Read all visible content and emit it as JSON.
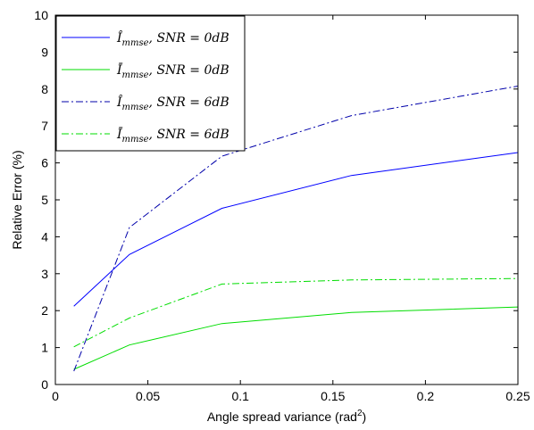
{
  "chart_data": {
    "type": "line",
    "xlabel": "Angle spread variance (rad",
    "xlabel_sup": "2",
    "xlabel_close": ")",
    "ylabel": "Relative Error (%)",
    "xlim": [
      0,
      0.25
    ],
    "ylim": [
      0,
      10
    ],
    "xticks": [
      "0",
      "0.05",
      "0.1",
      "0.15",
      "0.2",
      "0.25"
    ],
    "xtick_values": [
      0,
      0.05,
      0.1,
      0.15,
      0.2,
      0.25
    ],
    "yticks": [
      "0",
      "1",
      "2",
      "3",
      "4",
      "5",
      "6",
      "7",
      "8",
      "9",
      "10"
    ],
    "ytick_values": [
      0,
      1,
      2,
      3,
      4,
      5,
      6,
      7,
      8,
      9,
      10
    ],
    "grid": false,
    "legend_position": "top-left",
    "x": [
      0.01,
      0.04,
      0.09,
      0.16,
      0.25
    ],
    "series": [
      {
        "name": "Î_mmse, SNR = 0dB",
        "legend_base": "Î",
        "legend_sub": "mmse",
        "legend_rest": ", SNR = 0dB",
        "values": [
          2.12,
          3.52,
          4.77,
          5.66,
          6.28
        ],
        "color": "#0000ff",
        "dash": "solid"
      },
      {
        "name": "Ī_mmse, SNR = 0dB",
        "legend_base": "Ī",
        "legend_sub": "mmse",
        "legend_rest": ", SNR = 0dB",
        "values": [
          0.41,
          1.07,
          1.65,
          1.95,
          2.1
        ],
        "color": "#00dd00",
        "dash": "solid"
      },
      {
        "name": "Î_mmse, SNR = 6dB",
        "legend_base": "Î",
        "legend_sub": "mmse",
        "legend_rest": ", SNR = 6dB",
        "values": [
          0.36,
          4.25,
          6.18,
          7.28,
          8.08
        ],
        "color": "#0000aa",
        "dash": "dashdot"
      },
      {
        "name": "Ī_mmse, SNR = 6dB",
        "legend_base": "Ī",
        "legend_sub": "mmse",
        "legend_rest": ", SNR = 6dB",
        "values": [
          1.02,
          1.8,
          2.72,
          2.83,
          2.87
        ],
        "color": "#00dd00",
        "dash": "dashdot"
      }
    ]
  }
}
